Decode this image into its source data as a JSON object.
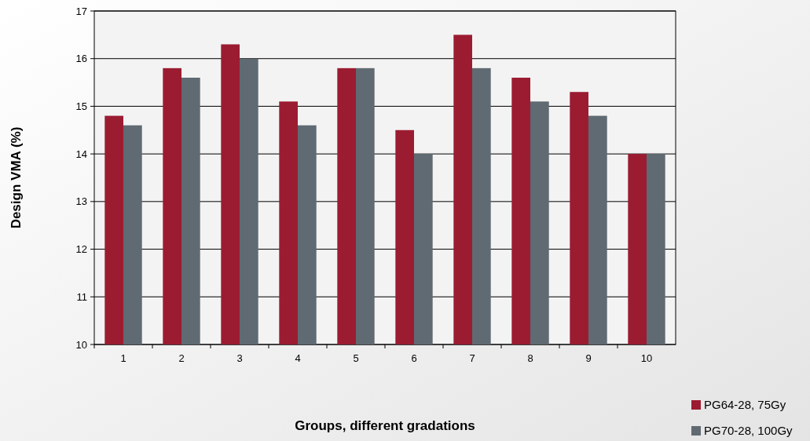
{
  "chart_data": {
    "type": "bar",
    "xlabel": "Groups, different gradations",
    "ylabel": "Design VMA (%)",
    "categories": [
      "1",
      "2",
      "3",
      "4",
      "5",
      "6",
      "7",
      "8",
      "9",
      "10"
    ],
    "series": [
      {
        "name": "PG64-28, 75Gy",
        "color": "#9b1c31",
        "values": [
          14.8,
          15.8,
          16.3,
          15.1,
          15.8,
          14.5,
          16.5,
          15.6,
          15.3,
          14.0
        ]
      },
      {
        "name": "PG70-28, 100Gy",
        "color": "#5f6a72",
        "values": [
          14.6,
          15.6,
          16.0,
          14.6,
          15.8,
          14.0,
          15.8,
          15.1,
          14.8,
          14.0
        ]
      }
    ],
    "ylim": [
      10,
      17
    ],
    "yticks": [
      10,
      11,
      12,
      13,
      14,
      15,
      16,
      17
    ],
    "grid": "y",
    "legend": "bottom right"
  }
}
